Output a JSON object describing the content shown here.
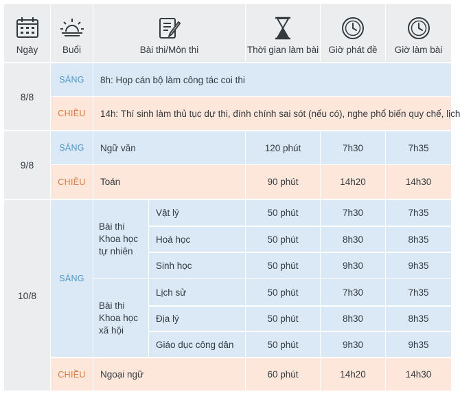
{
  "header": {
    "col_date": "Ngày",
    "col_session": "Buổi",
    "col_subject": "Bài thi/Môn thi",
    "col_duration": "Thời gian làm bài",
    "col_release": "Giờ phát đề",
    "col_start": "Giờ làm bài",
    "icons": [
      "calendar-icon",
      "sunrise-icon",
      "document-pencil-icon",
      "hourglass-icon",
      "clock-icon",
      "clock-icon"
    ]
  },
  "labels": {
    "morning": "SÁNG",
    "afternoon": "CHIỀU"
  },
  "days": [
    {
      "date": "8/8",
      "morning_text": "8h: Họp cán bộ làm công tác coi thi",
      "afternoon_text": "14h: Thí sinh làm thủ tục dự thi, đính chính sai sót (nếu có), nghe phổ biến quy chế, lịch"
    },
    {
      "date": "9/8",
      "morning": {
        "subject": "Ngữ văn",
        "duration": "120 phút",
        "release": "7h30",
        "start": "7h35"
      },
      "afternoon": {
        "subject": "Toán",
        "duration": "90 phút",
        "release": "14h20",
        "start": "14h30"
      }
    },
    {
      "date": "10/8",
      "groups": [
        {
          "name": "Bài thi Khoa học tự nhiên",
          "subjects": [
            {
              "subject": "Vật lý",
              "duration": "50 phút",
              "release": "7h30",
              "start": "7h35"
            },
            {
              "subject": "Hoá học",
              "duration": "50 phút",
              "release": "8h30",
              "start": "8h35"
            },
            {
              "subject": "Sinh học",
              "duration": "50 phút",
              "release": "9h30",
              "start": "9h35"
            }
          ]
        },
        {
          "name": "Bài thi Khoa học xã hội",
          "subjects": [
            {
              "subject": "Lịch sử",
              "duration": "50 phút",
              "release": "7h30",
              "start": "7h35"
            },
            {
              "subject": "Địa lý",
              "duration": "50 phút",
              "release": "8h30",
              "start": "8h35"
            },
            {
              "subject": "Giáo dục công dân",
              "duration": "50 phút",
              "release": "9h30",
              "start": "9h35"
            }
          ]
        }
      ],
      "afternoon": {
        "subject": "Ngoại ngữ",
        "duration": "60 phút",
        "release": "14h20",
        "start": "14h30"
      }
    }
  ],
  "colors": {
    "header_bg": "#ebedef",
    "morning_bg": "#dbe9f6",
    "afternoon_bg": "#fde7da",
    "morning_text": "#4a98cf",
    "afternoon_text": "#e07b41"
  }
}
